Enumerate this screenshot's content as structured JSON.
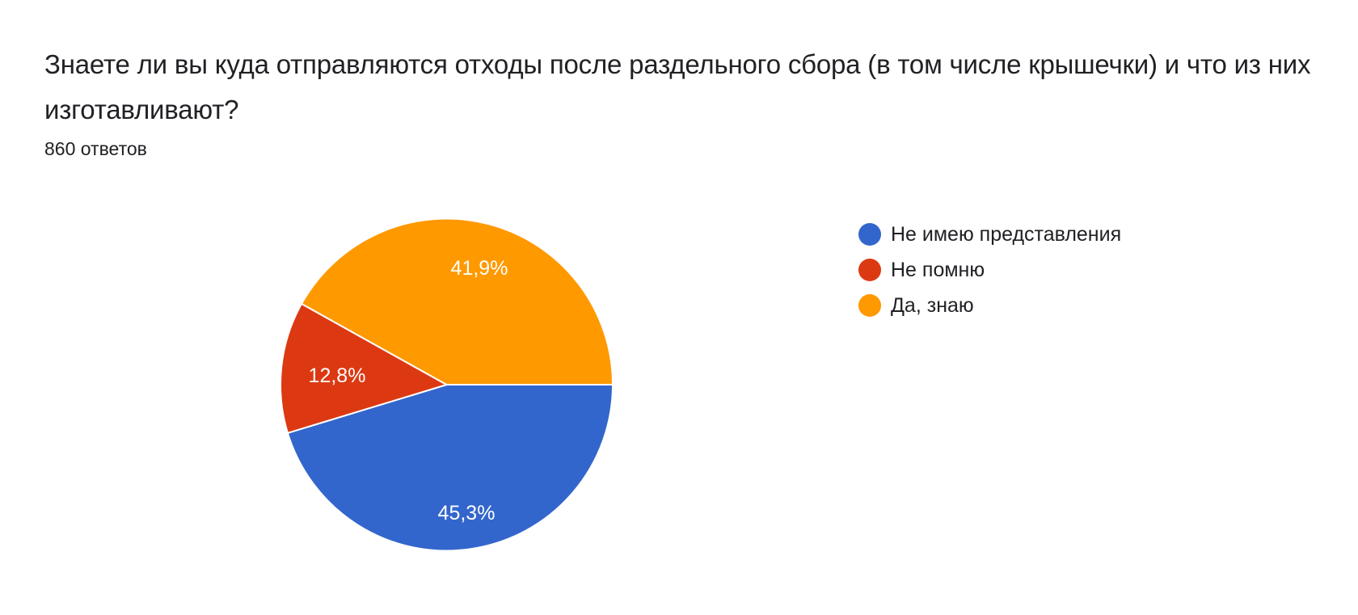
{
  "header": {
    "title": "Знаете ли вы куда отправляются отходы после раздельного сбора (в том числе крышечки) и что из них изготавливают?",
    "response_count": "860 ответов"
  },
  "legend": {
    "items": [
      {
        "label": "Не имею представления",
        "color": "#3366cc"
      },
      {
        "label": "Не помню",
        "color": "#dc3912"
      },
      {
        "label": "Да, знаю",
        "color": "#ff9900"
      }
    ]
  },
  "chart_data": {
    "type": "pie",
    "title": "Знаете ли вы куда отправляются отходы после раздельного сбора (в том числе крышечки) и что из них изготавливают?",
    "subtitle": "860 ответов",
    "categories": [
      "Не имею представления",
      "Не помню",
      "Да, знаю"
    ],
    "values": [
      45.3,
      12.8,
      41.9
    ],
    "value_labels": [
      "45,3%",
      "12,8%",
      "41,9%"
    ],
    "colors": [
      "#3366cc",
      "#dc3912",
      "#ff9900"
    ],
    "start_angle": "east (3 o'clock), clockwise",
    "legend_position": "right",
    "total_responses": 860
  }
}
